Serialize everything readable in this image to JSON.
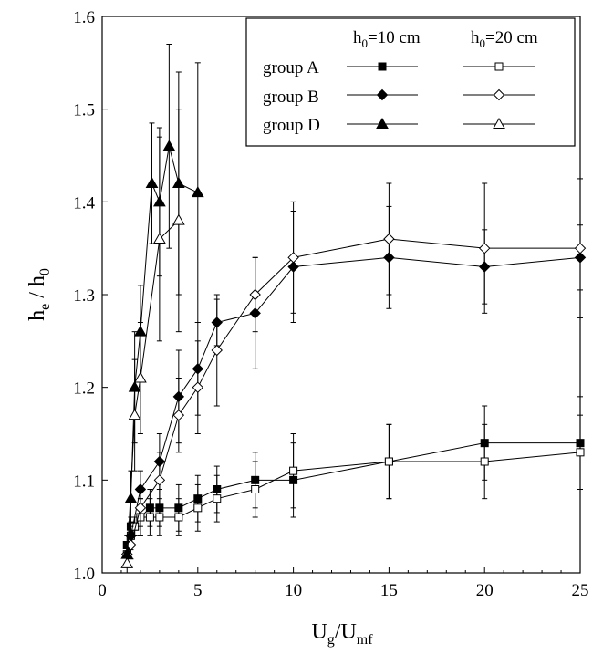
{
  "chart_data": {
    "type": "line",
    "xlabel": "U",
    "xlabel_sub": "g",
    "xlabel_mid": "/U",
    "xlabel_sub2": "mf",
    "ylabel": "h",
    "ylabel_sub": "e",
    "ylabel_mid": " / h",
    "ylabel_sub2": "0",
    "xlim": [
      0,
      25
    ],
    "ylim": [
      1.0,
      1.6
    ],
    "xticks": [
      "0",
      "5",
      "10",
      "15",
      "20",
      "25"
    ],
    "yticks": [
      "1.0",
      "1.1",
      "1.2",
      "1.3",
      "1.4",
      "1.5",
      "1.6"
    ],
    "grid": false,
    "legend": {
      "placement": "top-right",
      "col1_header": "h",
      "col1_sub": "0",
      "col1_rest": "=10 cm",
      "col2_header": "h",
      "col2_sub": "0",
      "col2_rest": "=20 cm",
      "rows": [
        "group A",
        "group B",
        "group D"
      ]
    },
    "series": [
      {
        "group": "group A",
        "h0": "10 cm",
        "marker": "square",
        "filled": true,
        "x": [
          1.3,
          1.5,
          1.7,
          2.0,
          2.5,
          3.0,
          4.0,
          5.0,
          6.0,
          8.0,
          10.0,
          15.0,
          20.0,
          25.0
        ],
        "y": [
          1.03,
          1.05,
          1.05,
          1.06,
          1.07,
          1.07,
          1.07,
          1.08,
          1.09,
          1.1,
          1.1,
          1.12,
          1.14,
          1.14
        ],
        "err": [
          0.01,
          0.01,
          0.01,
          0.02,
          0.02,
          0.02,
          0.025,
          0.025,
          0.025,
          0.03,
          0.04,
          0.04,
          0.04,
          0.05
        ]
      },
      {
        "group": "group A",
        "h0": "20 cm",
        "marker": "square",
        "filled": false,
        "x": [
          1.3,
          1.5,
          1.7,
          2.0,
          2.5,
          3.0,
          4.0,
          5.0,
          6.0,
          8.0,
          10.0,
          15.0,
          20.0,
          25.0
        ],
        "y": [
          1.02,
          1.04,
          1.05,
          1.06,
          1.06,
          1.06,
          1.06,
          1.07,
          1.08,
          1.09,
          1.11,
          1.12,
          1.12,
          1.13
        ],
        "err": [
          0.01,
          0.01,
          0.01,
          0.02,
          0.02,
          0.02,
          0.02,
          0.025,
          0.025,
          0.03,
          0.04,
          0.04,
          0.04,
          0.04
        ]
      },
      {
        "group": "group B",
        "h0": "10 cm",
        "marker": "diamond",
        "filled": true,
        "x": [
          1.3,
          1.5,
          2.0,
          3.0,
          4.0,
          5.0,
          6.0,
          8.0,
          10.0,
          15.0,
          20.0,
          25.0
        ],
        "y": [
          1.02,
          1.04,
          1.09,
          1.12,
          1.19,
          1.22,
          1.27,
          1.28,
          1.33,
          1.34,
          1.33,
          1.34
        ],
        "err": [
          0.01,
          0.015,
          0.02,
          0.03,
          0.05,
          0.05,
          0.025,
          0.06,
          0.06,
          0.055,
          0.04,
          0.035
        ]
      },
      {
        "group": "group B",
        "h0": "20 cm",
        "marker": "diamond",
        "filled": false,
        "x": [
          1.3,
          1.5,
          2.0,
          3.0,
          4.0,
          5.0,
          6.0,
          8.0,
          10.0,
          15.0,
          20.0,
          25.0
        ],
        "y": [
          1.02,
          1.03,
          1.07,
          1.1,
          1.17,
          1.2,
          1.24,
          1.3,
          1.34,
          1.36,
          1.35,
          1.35
        ],
        "err": [
          0.01,
          0.015,
          0.02,
          0.03,
          0.04,
          0.05,
          0.06,
          0.04,
          0.06,
          0.06,
          0.07,
          0.075
        ]
      },
      {
        "group": "group D",
        "h0": "10 cm",
        "marker": "triangle",
        "filled": true,
        "x": [
          1.3,
          1.5,
          1.7,
          2.0,
          2.6,
          3.0,
          3.5,
          4.0,
          5.0
        ],
        "y": [
          1.02,
          1.08,
          1.2,
          1.26,
          1.42,
          1.4,
          1.46,
          1.42,
          1.41
        ],
        "err": [
          0.01,
          0.03,
          0.06,
          0.05,
          0.065,
          0.08,
          0.11,
          0.12,
          0.14
        ]
      },
      {
        "group": "group D",
        "h0": "20 cm",
        "marker": "triangle",
        "filled": false,
        "x": [
          1.3,
          1.7,
          2.0,
          3.0,
          4.0
        ],
        "y": [
          1.01,
          1.17,
          1.21,
          1.36,
          1.38
        ],
        "err": [
          0.01,
          0.06,
          0.06,
          0.11,
          0.12
        ]
      }
    ]
  }
}
